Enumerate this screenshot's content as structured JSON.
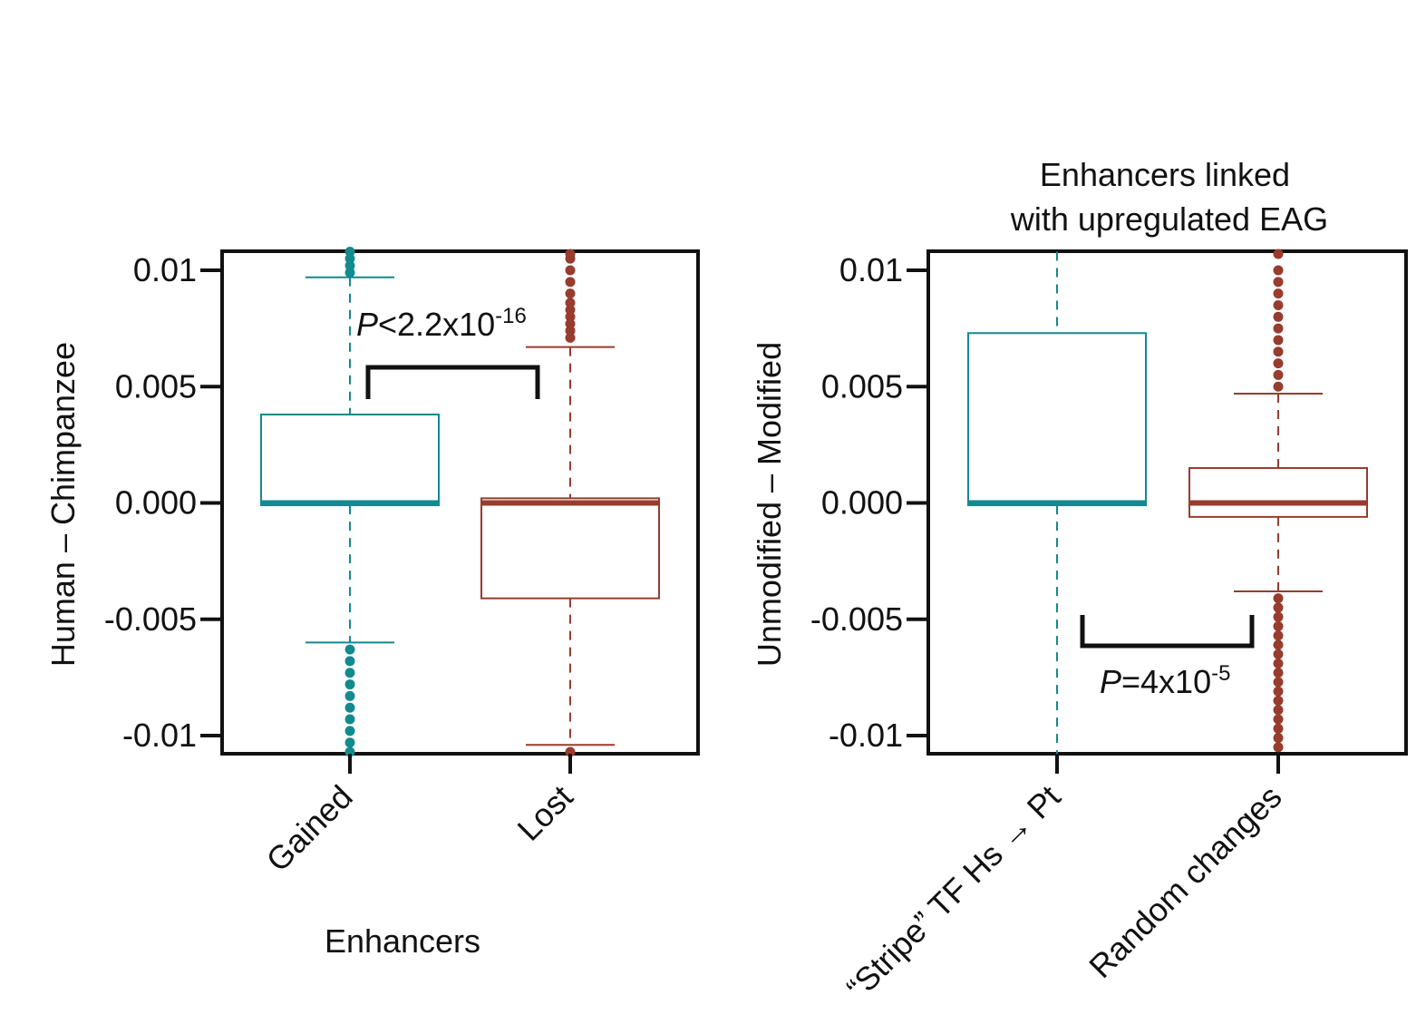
{
  "colors": {
    "gained": "#138a8e",
    "lost": "#973c2e",
    "axis": "#111111"
  },
  "chart_data": [
    {
      "type": "box",
      "title": "",
      "xlabel": "Enhancers",
      "ylabel": "Human – Chimpanzee",
      "ylim": [
        -0.0108,
        0.0108
      ],
      "yticks": [
        0.01,
        0.005,
        0.0,
        -0.005,
        -0.01
      ],
      "ytick_labels": [
        "0.01",
        "0.005",
        "0.000",
        "-0.005",
        "-0.01"
      ],
      "categories": [
        "Gained",
        "Lost"
      ],
      "boxes": [
        {
          "name": "Gained",
          "color": "gained",
          "whisker_low": -0.006,
          "q1": -0.0001,
          "median": 0.0,
          "q3": 0.0038,
          "whisker_high": 0.0097,
          "outliers_low": [
            -0.0063,
            -0.0068,
            -0.0073,
            -0.0078,
            -0.0083,
            -0.0088,
            -0.0093,
            -0.0098,
            -0.0103,
            -0.0107
          ],
          "outliers_high": [
            0.0099,
            0.0102,
            0.0105,
            0.0108
          ]
        },
        {
          "name": "Lost",
          "color": "lost",
          "whisker_low": -0.0104,
          "q1": -0.0041,
          "median": 0.0,
          "q3": 0.0002,
          "whisker_high": 0.0067,
          "outliers_low": [
            -0.0107
          ],
          "outliers_high": [
            0.0071,
            0.0074,
            0.0077,
            0.008,
            0.0083,
            0.0086,
            0.009,
            0.0095,
            0.01,
            0.0105,
            0.0107
          ]
        }
      ],
      "annotation": {
        "prefix": "P",
        "text": "<2.2x10",
        "exponent": "-16"
      }
    },
    {
      "type": "box",
      "title": "Enhancers linked\nwith upregulated EAG",
      "xlabel": "",
      "ylabel": "Unmodified – Modified",
      "ylim": [
        -0.0108,
        0.0108
      ],
      "yticks": [
        0.01,
        0.005,
        0.0,
        -0.005,
        -0.01
      ],
      "ytick_labels": [
        "0.01",
        "0.005",
        "0.000",
        "-0.005",
        "-0.01"
      ],
      "categories": [
        "“Stripe” TF Hs → Pt",
        "Random changes"
      ],
      "boxes": [
        {
          "name": "“Stripe” TF Hs → Pt",
          "color": "gained",
          "whisker_low": -0.0108,
          "q1": -0.0001,
          "median": 0.0,
          "q3": 0.0073,
          "whisker_high": 0.0108,
          "outliers_low": [],
          "outliers_high": []
        },
        {
          "name": "Random changes",
          "color": "lost",
          "whisker_low": -0.0038,
          "q1": -0.0006,
          "median": 0.0,
          "q3": 0.0015,
          "whisker_high": 0.0047,
          "outliers_low": [
            -0.0041,
            -0.0045,
            -0.0049,
            -0.0053,
            -0.0057,
            -0.0061,
            -0.0065,
            -0.0069,
            -0.0073,
            -0.0077,
            -0.0081,
            -0.0085,
            -0.0089,
            -0.0093,
            -0.0097,
            -0.0101,
            -0.0105
          ],
          "outliers_high": [
            0.005,
            0.0055,
            0.006,
            0.0065,
            0.007,
            0.0075,
            0.008,
            0.0085,
            0.009,
            0.0095,
            0.01,
            0.0107
          ]
        }
      ],
      "annotation": {
        "prefix": "P",
        "text": "=4x10",
        "exponent": "-5"
      }
    }
  ]
}
